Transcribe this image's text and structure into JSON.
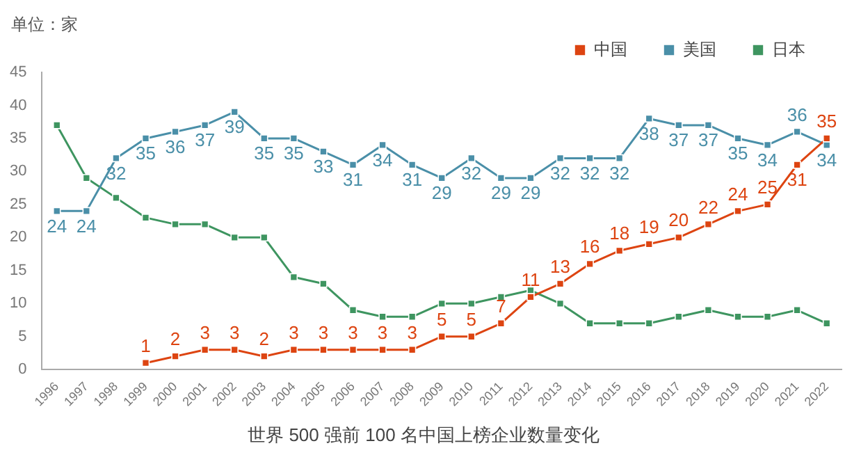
{
  "chart_data": {
    "type": "line",
    "title": "世界 500 强前 100 名中国上榜企业数量变化",
    "ylabel": "单位：家",
    "categories": [
      "1996",
      "1997",
      "1998",
      "1999",
      "2000",
      "2001",
      "2002",
      "2003",
      "2004",
      "2005",
      "2006",
      "2007",
      "2008",
      "2009",
      "2010",
      "2011",
      "2012",
      "2013",
      "2014",
      "2015",
      "2016",
      "2017",
      "2018",
      "2019",
      "2020",
      "2021",
      "2022"
    ],
    "series": [
      {
        "name": "中国",
        "color": "#dd4411",
        "values": [
          null,
          null,
          null,
          1,
          2,
          3,
          3,
          2,
          3,
          3,
          3,
          3,
          3,
          5,
          5,
          7,
          11,
          13,
          16,
          18,
          19,
          20,
          22,
          24,
          25,
          31,
          35
        ],
        "value_labels": [
          null,
          null,
          null,
          "1",
          "2",
          "3",
          "3",
          "2",
          "3",
          "3",
          "3",
          "3",
          "3",
          "5",
          "5",
          "7",
          "11",
          "13",
          "16",
          "18",
          "19",
          "20",
          "22",
          "24",
          "25",
          "31",
          "35"
        ]
      },
      {
        "name": "美国",
        "color": "#4a8fa8",
        "values": [
          24,
          24,
          32,
          35,
          36,
          37,
          39,
          35,
          35,
          33,
          31,
          34,
          31,
          29,
          32,
          29,
          29,
          32,
          32,
          32,
          38,
          37,
          37,
          35,
          34,
          36,
          34
        ],
        "value_labels": [
          "24",
          "24",
          "32",
          "35",
          "36",
          "37",
          "39",
          "35",
          "35",
          "33",
          "31",
          "34",
          "31",
          "29",
          "32",
          "29",
          "29",
          "32",
          "32",
          "32",
          "38",
          "37",
          "37",
          "35",
          "34",
          "36",
          "34"
        ]
      },
      {
        "name": "日本",
        "color": "#3e9560",
        "values": [
          37,
          29,
          26,
          23,
          22,
          22,
          20,
          20,
          14,
          13,
          9,
          8,
          8,
          10,
          10,
          11,
          12,
          10,
          7,
          7,
          7,
          8,
          9,
          8,
          8,
          9,
          7
        ]
      }
    ],
    "ylim": [
      0,
      45
    ],
    "yticks": [
      0,
      5,
      10,
      15,
      20,
      25,
      30,
      35,
      40,
      45
    ],
    "grid": false,
    "legend": "top right",
    "marker": "square",
    "line_style": "solid"
  }
}
